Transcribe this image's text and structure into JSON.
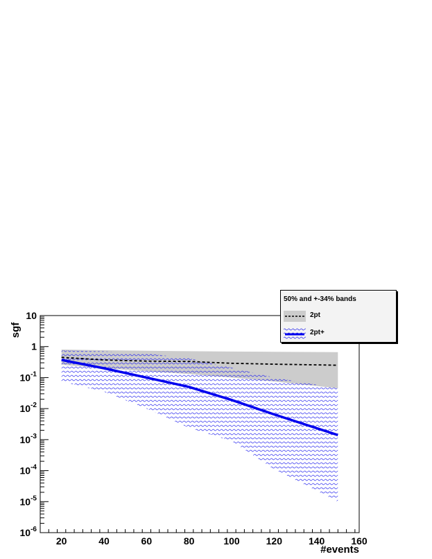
{
  "chart_data": {
    "type": "line",
    "title": "",
    "xlabel": "#events",
    "ylabel": "sgf",
    "xlim": [
      10,
      160
    ],
    "ylim_log10": [
      -6,
      1
    ],
    "y_scale": "log",
    "x_ticks": [
      20,
      40,
      60,
      80,
      100,
      120,
      140,
      160
    ],
    "x_tick_labels": [
      "20",
      "40",
      "60",
      "80",
      "100",
      "120",
      "140",
      "160"
    ],
    "y_tick_exponents": [
      -6,
      -5,
      -4,
      -3,
      -2,
      -1,
      0,
      1
    ],
    "y_tick_labels": [
      {
        "base": "10",
        "exp": "-6"
      },
      {
        "base": "10",
        "exp": "-5"
      },
      {
        "base": "10",
        "exp": "-4"
      },
      {
        "base": "10",
        "exp": "-3"
      },
      {
        "base": "10",
        "exp": "-2"
      },
      {
        "base": "10",
        "exp": "-1"
      },
      {
        "base": "1",
        "exp": ""
      },
      {
        "base": "10",
        "exp": ""
      }
    ],
    "legend_position": "top-right",
    "legend_title": "50% and +-34% bands",
    "grid": false,
    "series": [
      {
        "name": "2pt",
        "style": "dashed",
        "color": "#000000",
        "band_color": "#cccccc",
        "x": [
          20,
          40,
          60,
          80,
          100,
          120,
          150
        ],
        "y": [
          0.45,
          0.37,
          0.34,
          0.33,
          0.29,
          0.27,
          0.25
        ],
        "band_low": [
          0.26,
          0.2,
          0.16,
          0.13,
          0.1,
          0.075,
          0.045
        ],
        "band_high": [
          0.8,
          0.76,
          0.73,
          0.71,
          0.69,
          0.68,
          0.66
        ]
      },
      {
        "name": "2pt+",
        "style": "solid",
        "color": "#0000ee",
        "band_color": "#0000ee",
        "x": [
          20,
          40,
          60,
          80,
          100,
          120,
          150
        ],
        "y": [
          0.37,
          0.2,
          0.1,
          0.05,
          0.019,
          0.0065,
          0.0014
        ],
        "band_low": [
          0.075,
          0.035,
          0.01,
          0.0024,
          0.0009,
          0.00011,
          1e-05
        ],
        "band_high": [
          0.75,
          0.7,
          0.6,
          0.42,
          0.21,
          0.1,
          0.045
        ]
      }
    ]
  }
}
